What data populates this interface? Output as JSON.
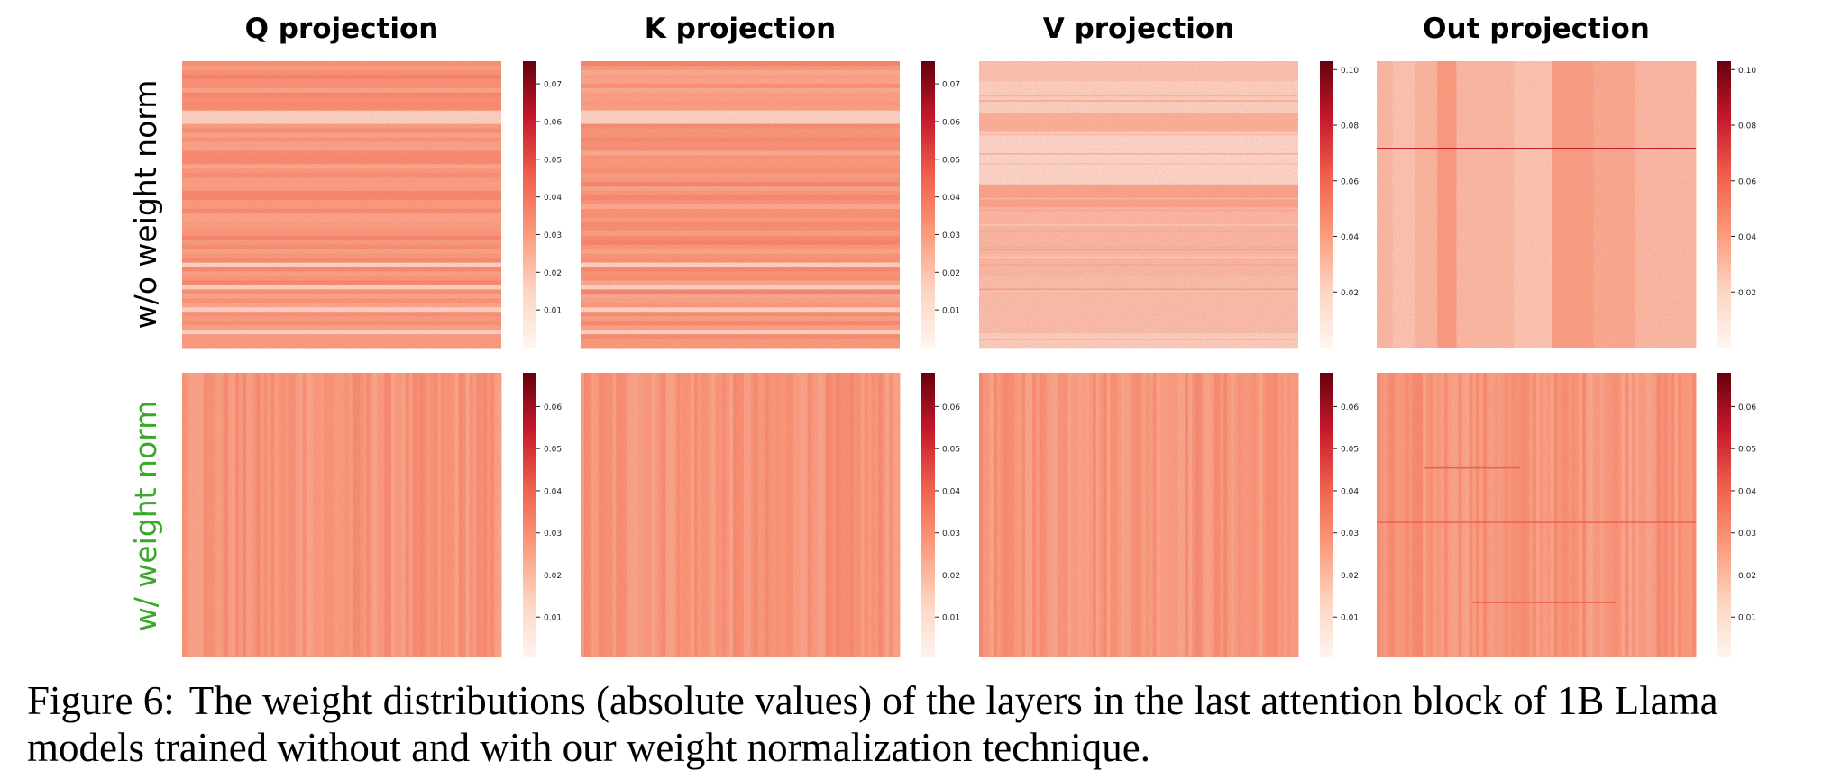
{
  "figure": {
    "caption_label": "Figure 6:",
    "caption_text": "The weight distributions (absolute values) of the layers in the last attention block of 1B Llama models trained without and with our weight normalization technique."
  },
  "chart_data": [
    {
      "type": "heatmap",
      "title": "Q projection",
      "row_label": "w/o weight norm",
      "row_label_color": "#000000",
      "colorbar_ticks": [
        "0.01",
        "0.02",
        "0.03",
        "0.04",
        "0.05",
        "0.06",
        "0.07"
      ],
      "vmax": 0.076,
      "base": 0.029,
      "pattern": "horizontal-bands",
      "colormap": "Reds"
    },
    {
      "type": "heatmap",
      "title": "K projection",
      "row_label": "w/o weight norm",
      "row_label_color": "#000000",
      "colorbar_ticks": [
        "0.01",
        "0.02",
        "0.03",
        "0.04",
        "0.05",
        "0.06",
        "0.07"
      ],
      "vmax": 0.076,
      "base": 0.029,
      "pattern": "horizontal-bands",
      "colormap": "Reds"
    },
    {
      "type": "heatmap",
      "title": "V projection",
      "row_label": "w/o weight norm",
      "row_label_color": "#000000",
      "colorbar_ticks": [
        "0.02",
        "0.04",
        "0.06",
        "0.08",
        "0.10"
      ],
      "vmax": 0.103,
      "base": 0.025,
      "pattern": "horizontal-blocks",
      "colormap": "Reds"
    },
    {
      "type": "heatmap",
      "title": "Out projection",
      "row_label": "w/o weight norm",
      "row_label_color": "#000000",
      "colorbar_ticks": [
        "0.02",
        "0.04",
        "0.06",
        "0.08",
        "0.10"
      ],
      "vmax": 0.103,
      "base": 0.028,
      "pattern": "vertical-blocks",
      "colormap": "Reds"
    },
    {
      "type": "heatmap",
      "title": "",
      "row_label": "w/ weight norm",
      "row_label_color": "#3aa829",
      "colorbar_ticks": [
        "0.01",
        "0.02",
        "0.03",
        "0.04",
        "0.05",
        "0.06"
      ],
      "vmax": 0.068,
      "base": 0.026,
      "pattern": "uniform",
      "colormap": "Reds"
    },
    {
      "type": "heatmap",
      "title": "",
      "row_label": "w/ weight norm",
      "row_label_color": "#3aa829",
      "colorbar_ticks": [
        "0.01",
        "0.02",
        "0.03",
        "0.04",
        "0.05",
        "0.06"
      ],
      "vmax": 0.068,
      "base": 0.026,
      "pattern": "uniform",
      "colormap": "Reds"
    },
    {
      "type": "heatmap",
      "title": "",
      "row_label": "w/ weight norm",
      "row_label_color": "#3aa829",
      "colorbar_ticks": [
        "0.01",
        "0.02",
        "0.03",
        "0.04",
        "0.05",
        "0.06"
      ],
      "vmax": 0.068,
      "base": 0.026,
      "pattern": "uniform",
      "colormap": "Reds"
    },
    {
      "type": "heatmap",
      "title": "",
      "row_label": "w/ weight norm",
      "row_label_color": "#3aa829",
      "colorbar_ticks": [
        "0.01",
        "0.02",
        "0.03",
        "0.04",
        "0.05",
        "0.06"
      ],
      "vmax": 0.068,
      "base": 0.026,
      "pattern": "uniform",
      "colormap": "Reds"
    }
  ],
  "row_labels": [
    {
      "text": "w/o weight norm",
      "color": "#000000"
    },
    {
      "text": "w/ weight norm",
      "color": "#3aa829"
    }
  ],
  "column_titles": [
    "Q projection",
    "K projection",
    "V projection",
    "Out projection"
  ]
}
